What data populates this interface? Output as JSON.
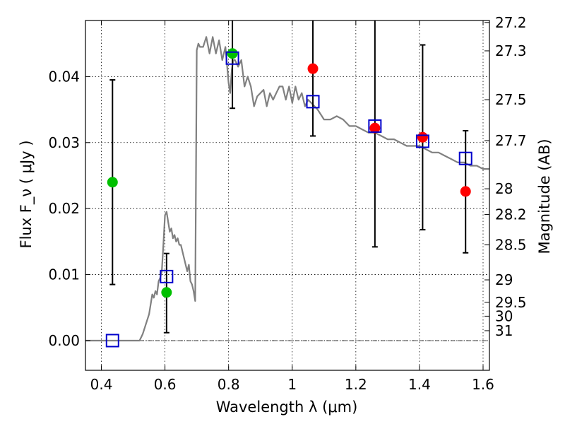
{
  "chart_data": {
    "type": "scatter",
    "title": "",
    "xlabel": "Wavelength  λ (μm)",
    "ylabel": "Flux  F_ν  ( μJy )",
    "y2label": "Magnitude (AB)",
    "xlim": [
      0.35,
      1.62
    ],
    "ylim": [
      -0.0045,
      0.0485
    ],
    "grid": true,
    "x_ticks": [
      0.4,
      0.6,
      0.8,
      1.0,
      1.2,
      1.4,
      1.6
    ],
    "x_tick_labels": [
      "0.4",
      "0.6",
      "0.8",
      "1",
      "1.2",
      "1.4",
      "1.6"
    ],
    "y_ticks": [
      0.0,
      0.01,
      0.02,
      0.03,
      0.04
    ],
    "y_tick_labels": [
      "0.00",
      "0.01",
      "0.02",
      "0.03",
      "0.04"
    ],
    "right_ticks": [
      {
        "label": "27.2",
        "flux": 0.0482
      },
      {
        "label": "27.3",
        "flux": 0.0439
      },
      {
        "label": "27.5",
        "flux": 0.0365
      },
      {
        "label": "27.7",
        "flux": 0.0303
      },
      {
        "label": "28",
        "flux": 0.023
      },
      {
        "label": "28.2",
        "flux": 0.0191
      },
      {
        "label": "28.5",
        "flux": 0.0145
      },
      {
        "label": "29",
        "flux": 0.0092
      },
      {
        "label": "29.5",
        "flux": 0.0058
      },
      {
        "label": "30",
        "flux": 0.0037
      },
      {
        "label": "31",
        "flux": 0.0015
      }
    ],
    "series": [
      {
        "kind": "line",
        "color": "#808080",
        "x": [
          0.35,
          0.42,
          0.52,
          0.53,
          0.55,
          0.56,
          0.565,
          0.57,
          0.575,
          0.58,
          0.585,
          0.59,
          0.595,
          0.6,
          0.605,
          0.61,
          0.615,
          0.62,
          0.625,
          0.63,
          0.635,
          0.64,
          0.645,
          0.65,
          0.66,
          0.67,
          0.675,
          0.68,
          0.685,
          0.69,
          0.695,
          0.7,
          0.705,
          0.71,
          0.72,
          0.73,
          0.74,
          0.75,
          0.76,
          0.77,
          0.78,
          0.79,
          0.8,
          0.805,
          0.81,
          0.815,
          0.82,
          0.83,
          0.84,
          0.85,
          0.86,
          0.87,
          0.88,
          0.89,
          0.9,
          0.91,
          0.92,
          0.93,
          0.94,
          0.95,
          0.96,
          0.97,
          0.98,
          0.99,
          1.0,
          1.01,
          1.02,
          1.03,
          1.04,
          1.05,
          1.06,
          1.08,
          1.1,
          1.12,
          1.14,
          1.16,
          1.18,
          1.2,
          1.22,
          1.24,
          1.26,
          1.28,
          1.3,
          1.32,
          1.34,
          1.36,
          1.38,
          1.4,
          1.42,
          1.44,
          1.46,
          1.48,
          1.5,
          1.52,
          1.54,
          1.56,
          1.58,
          1.6,
          1.62
        ],
        "y": [
          0.0,
          0.0,
          0.0,
          0.001,
          0.004,
          0.007,
          0.0065,
          0.0075,
          0.007,
          0.009,
          0.0095,
          0.0105,
          0.0145,
          0.019,
          0.0195,
          0.018,
          0.0165,
          0.017,
          0.0155,
          0.016,
          0.015,
          0.0155,
          0.0145,
          0.0145,
          0.0125,
          0.0105,
          0.0115,
          0.009,
          0.0085,
          0.0075,
          0.006,
          0.044,
          0.045,
          0.0445,
          0.0445,
          0.046,
          0.0435,
          0.046,
          0.0435,
          0.0455,
          0.0425,
          0.0445,
          0.039,
          0.0375,
          0.041,
          0.0425,
          0.0425,
          0.0415,
          0.0425,
          0.0385,
          0.04,
          0.0385,
          0.0355,
          0.037,
          0.0375,
          0.038,
          0.0355,
          0.0375,
          0.0365,
          0.0375,
          0.0385,
          0.0385,
          0.0365,
          0.0385,
          0.036,
          0.0385,
          0.0365,
          0.0375,
          0.0355,
          0.0365,
          0.036,
          0.035,
          0.0335,
          0.0335,
          0.034,
          0.0335,
          0.0325,
          0.0325,
          0.032,
          0.0315,
          0.0315,
          0.031,
          0.0305,
          0.0305,
          0.03,
          0.0295,
          0.0295,
          0.0295,
          0.029,
          0.0285,
          0.0285,
          0.028,
          0.0275,
          0.027,
          0.027,
          0.0265,
          0.0265,
          0.026,
          0.026
        ]
      },
      {
        "kind": "errorbar",
        "color": "#000000",
        "points": [
          {
            "x": 0.435,
            "lo": 0.0085,
            "hi": 0.0395
          },
          {
            "x": 0.605,
            "lo": 0.0012,
            "hi": 0.0132
          },
          {
            "x": 0.812,
            "lo": 0.0352,
            "hi": 0.0485
          },
          {
            "x": 1.065,
            "lo": 0.031,
            "hi": 0.0485
          },
          {
            "x": 1.26,
            "lo": 0.0142,
            "hi": 0.0485
          },
          {
            "x": 1.41,
            "lo": 0.0168,
            "hi": 0.0448
          },
          {
            "x": 1.545,
            "lo": 0.0133,
            "hi": 0.0318
          }
        ]
      },
      {
        "kind": "marker-circle",
        "color": "#00c000",
        "x": [
          0.435,
          0.605,
          0.812
        ],
        "y": [
          0.024,
          0.0073,
          0.0435
        ]
      },
      {
        "kind": "marker-circle",
        "color": "#ff0000",
        "x": [
          1.065,
          1.26,
          1.41,
          1.545
        ],
        "y": [
          0.0412,
          0.0322,
          0.0308,
          0.0226
        ]
      },
      {
        "kind": "marker-square",
        "color": "#0000cc",
        "x": [
          0.435,
          0.605,
          0.812,
          1.065,
          1.26,
          1.41,
          1.545
        ],
        "y": [
          0.0,
          0.0097,
          0.0428,
          0.0362,
          0.0325,
          0.0302,
          0.0276
        ]
      }
    ]
  }
}
